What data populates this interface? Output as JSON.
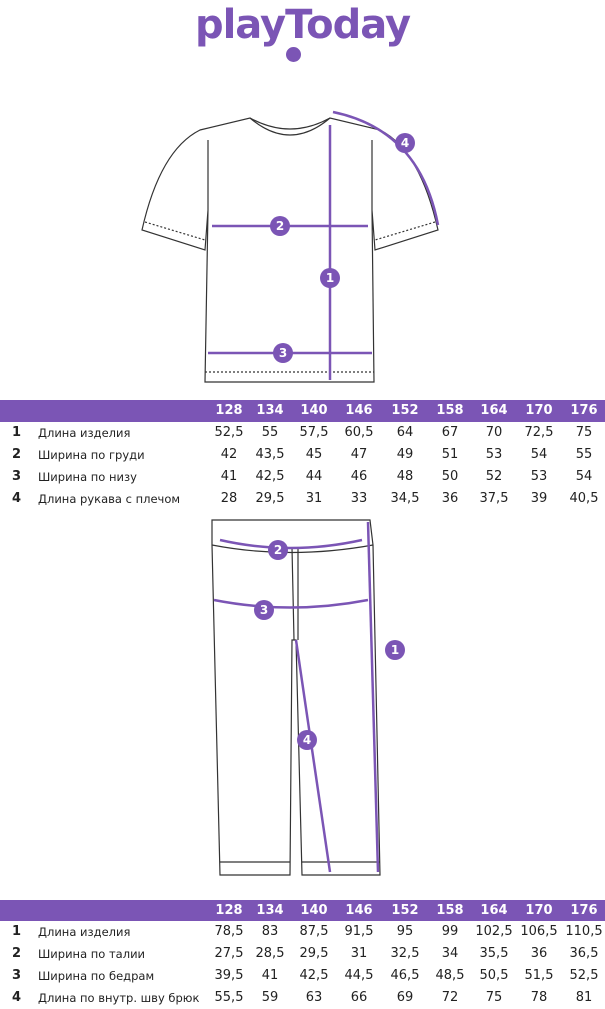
{
  "brand": {
    "logo_text": "playToday",
    "color": "#7b55b5"
  },
  "sizes": [
    "128",
    "134",
    "140",
    "146",
    "152",
    "158",
    "164",
    "170",
    "176"
  ],
  "shirt_table": {
    "rows": [
      {
        "num": "1",
        "label": "Длина изделия",
        "values": [
          "52,5",
          "55",
          "57,5",
          "60,5",
          "64",
          "67",
          "70",
          "72,5",
          "75"
        ]
      },
      {
        "num": "2",
        "label": "Ширина по груди",
        "values": [
          "42",
          "43,5",
          "45",
          "47",
          "49",
          "51",
          "53",
          "54",
          "55"
        ]
      },
      {
        "num": "3",
        "label": "Ширина по низу",
        "values": [
          "41",
          "42,5",
          "44",
          "46",
          "48",
          "50",
          "52",
          "53",
          "54"
        ]
      },
      {
        "num": "4",
        "label": "Длина рукава с плечом",
        "values": [
          "28",
          "29,5",
          "31",
          "33",
          "34,5",
          "36",
          "37,5",
          "39",
          "40,5"
        ]
      }
    ]
  },
  "pants_table": {
    "rows": [
      {
        "num": "1",
        "label": "Длина изделия",
        "values": [
          "78,5",
          "83",
          "87,5",
          "91,5",
          "95",
          "99",
          "102,5",
          "106,5",
          "110,5"
        ]
      },
      {
        "num": "2",
        "label": "Ширина по талии",
        "values": [
          "27,5",
          "28,5",
          "29,5",
          "31",
          "32,5",
          "34",
          "35,5",
          "36",
          "36,5"
        ]
      },
      {
        "num": "3",
        "label": "Ширина по бедрам",
        "values": [
          "39,5",
          "41",
          "42,5",
          "44,5",
          "46,5",
          "48,5",
          "50,5",
          "51,5",
          "52,5"
        ]
      },
      {
        "num": "4",
        "label": "Длина по внутр. шву брюк",
        "values": [
          "55,5",
          "59",
          "63",
          "66",
          "69",
          "72",
          "75",
          "78",
          "81"
        ]
      }
    ]
  },
  "shirt_markers": [
    "1",
    "2",
    "3",
    "4"
  ],
  "pants_markers": [
    "1",
    "2",
    "3",
    "4"
  ]
}
